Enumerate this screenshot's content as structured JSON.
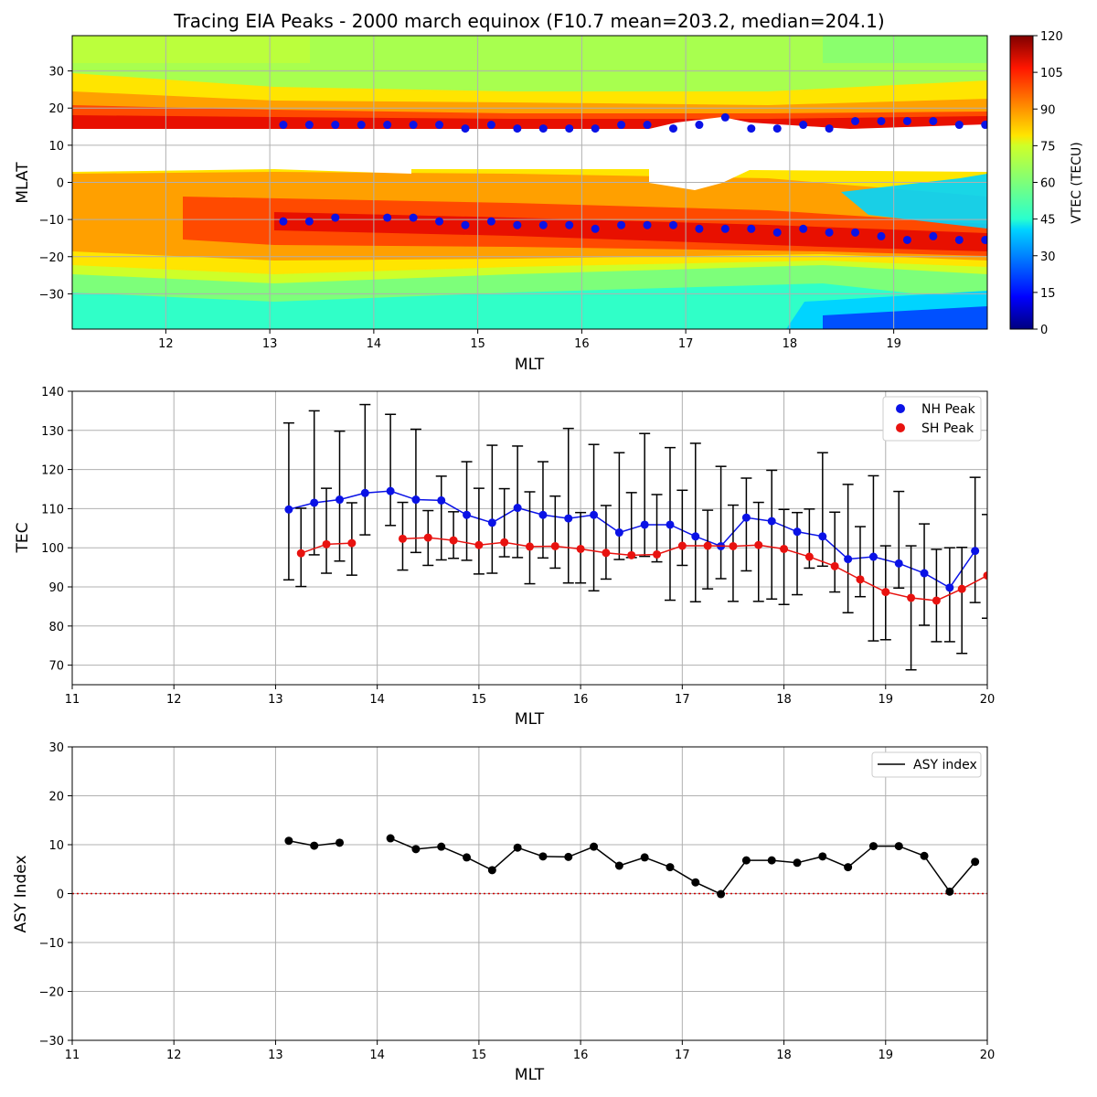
{
  "figure": {
    "title": "Tracing EIA Peaks - 2000 march equinox (F10.7 mean=203.2, median=204.1)"
  },
  "colors": {
    "nh": "#0a12e6",
    "sh": "#e8120f",
    "asy": "#000000",
    "zero_line": "#cc0000",
    "grid": "#b0b0b0"
  },
  "chart_data": [
    {
      "type": "heatmap",
      "xlabel": "MLT",
      "ylabel": "MLAT",
      "xlim": [
        11.1,
        19.9
      ],
      "ylim": [
        -39.5,
        39.5
      ],
      "xticks": [
        12,
        13,
        14,
        15,
        16,
        17,
        18,
        19
      ],
      "yticks": [
        -30,
        -20,
        -10,
        0,
        10,
        20,
        30
      ],
      "grid": true,
      "colorbar": {
        "label": "VTEC (TECU)",
        "min": 0,
        "max": 120,
        "ticks": [
          0,
          15,
          30,
          45,
          60,
          75,
          90,
          105,
          120
        ],
        "colormap": "jet"
      },
      "nh_peaks": {
        "x": [
          13.13,
          13.38,
          13.63,
          13.88,
          14.13,
          14.38,
          14.63,
          14.88,
          15.13,
          15.38,
          15.63,
          15.88,
          16.13,
          16.38,
          16.63,
          16.88,
          17.13,
          17.38,
          17.63,
          17.88,
          18.13,
          18.38,
          18.63,
          18.88,
          19.13,
          19.38,
          19.63,
          19.88
        ],
        "y": [
          15.5,
          15.5,
          15.5,
          15.5,
          15.5,
          15.5,
          15.5,
          14.5,
          15.5,
          14.5,
          14.5,
          14.5,
          14.5,
          15.5,
          15.5,
          14.5,
          15.5,
          17.5,
          14.5,
          14.5,
          15.5,
          14.5,
          16.5,
          16.5,
          16.5,
          16.5,
          15.5,
          15.5
        ]
      },
      "sh_peaks": {
        "x": [
          13.13,
          13.38,
          13.63,
          14.13,
          14.38,
          14.63,
          14.88,
          15.13,
          15.38,
          15.63,
          15.88,
          16.13,
          16.38,
          16.63,
          16.88,
          17.13,
          17.38,
          17.63,
          17.88,
          18.13,
          18.38,
          18.63,
          18.88,
          19.13,
          19.38,
          19.63,
          19.88
        ],
        "y": [
          -10.5,
          -10.5,
          -9.5,
          -9.5,
          -9.5,
          -10.5,
          -11.5,
          -10.5,
          -11.5,
          -11.5,
          -11.5,
          -12.5,
          -11.5,
          -11.5,
          -11.5,
          -12.5,
          -12.5,
          -12.5,
          -13.5,
          -12.5,
          -13.5,
          -13.5,
          -14.5,
          -15.5,
          -14.5,
          -15.5,
          -15.5
        ]
      }
    },
    {
      "type": "line",
      "xlabel": "MLT",
      "ylabel": "TEC",
      "xlim": [
        11,
        20
      ],
      "ylim": [
        65,
        140
      ],
      "xticks": [
        11,
        12,
        13,
        14,
        15,
        16,
        17,
        18,
        19,
        20
      ],
      "yticks": [
        70,
        80,
        90,
        100,
        110,
        120,
        130,
        140
      ],
      "grid": true,
      "legend": "top-right",
      "series": [
        {
          "name": "NH Peak",
          "segments": [
            {
              "x": [
                13.13,
                13.38,
                13.63,
                13.88,
                14.13,
                14.38,
                14.63,
                14.88,
                15.13,
                15.38,
                15.63,
                15.88,
                16.13,
                16.38,
                16.63,
                16.88,
                17.13,
                17.38,
                17.63,
                17.88,
                18.13,
                18.38,
                18.63,
                18.88,
                19.13,
                19.38,
                19.63,
                19.88
              ],
              "y": [
                109.8,
                111.5,
                112.3,
                114.0,
                114.5,
                112.3,
                112.1,
                108.4,
                106.4,
                110.2,
                108.4,
                107.5,
                108.4,
                103.9,
                105.9,
                105.9,
                102.9,
                100.4,
                107.7,
                106.8,
                104.1,
                102.9,
                97.1,
                97.7,
                96.0,
                93.5,
                89.8,
                99.2
              ],
              "err_low": [
                91.8,
                98.2,
                96.6,
                103.3,
                105.7,
                98.8,
                96.9,
                96.8,
                93.5,
                97.5,
                97.4,
                91.0,
                89.0,
                97.0,
                97.8,
                86.6,
                86.2,
                92.1,
                94.1,
                86.9,
                88.0,
                95.3,
                83.4,
                76.2,
                89.7,
                80.2,
                76.0,
                86.0
              ],
              "err_high": [
                131.9,
                135.0,
                129.8,
                136.6,
                134.1,
                130.3,
                118.3,
                122.0,
                126.2,
                126.0,
                122.0,
                130.5,
                126.4,
                124.3,
                129.2,
                125.6,
                126.7,
                120.8,
                117.8,
                119.8,
                109.0,
                124.3,
                116.2,
                118.4,
                114.4,
                106.1,
                100.0,
                118.0
              ]
            }
          ]
        },
        {
          "name": "SH Peak",
          "segments": [
            {
              "x": [
                13.25,
                13.5,
                13.75
              ],
              "y": [
                98.6,
                100.9,
                101.2
              ],
              "err_low": [
                90.1,
                93.5,
                93.0
              ],
              "err_high": [
                110.1,
                115.2,
                111.5
              ]
            },
            {
              "x": [
                14.25,
                14.5,
                14.75,
                15.0,
                15.25,
                15.5,
                15.75,
                16.0,
                16.25,
                16.5,
                16.75,
                17.0,
                17.25,
                17.5,
                17.75,
                18.0,
                18.25,
                18.5,
                18.75,
                19.0,
                19.25,
                19.5,
                19.75,
                20.0
              ],
              "y": [
                102.3,
                102.6,
                101.9,
                100.7,
                101.4,
                100.3,
                100.4,
                99.7,
                98.7,
                98.1,
                98.3,
                100.5,
                100.5,
                100.4,
                100.7,
                99.7,
                97.7,
                95.3,
                91.9,
                88.7,
                87.2,
                86.5,
                89.5,
                92.9
              ],
              "err_low": [
                94.3,
                95.5,
                97.3,
                93.3,
                97.7,
                90.8,
                94.8,
                91.0,
                92.0,
                97.5,
                96.4,
                95.5,
                89.5,
                86.3,
                86.3,
                85.5,
                94.8,
                88.7,
                87.5,
                76.5,
                68.8,
                76.0,
                73.0,
                82.0
              ],
              "err_high": [
                111.6,
                109.5,
                109.2,
                115.2,
                115.1,
                114.3,
                113.2,
                109.0,
                110.8,
                114.1,
                113.6,
                114.7,
                109.6,
                110.9,
                111.6,
                109.8,
                109.9,
                109.1,
                105.4,
                100.5,
                100.5,
                99.6,
                100.1,
                108.5
              ]
            }
          ]
        }
      ]
    },
    {
      "type": "line",
      "xlabel": "MLT",
      "ylabel": "ASY Index",
      "xlim": [
        11,
        20
      ],
      "ylim": [
        -30,
        30
      ],
      "xticks": [
        11,
        12,
        13,
        14,
        15,
        16,
        17,
        18,
        19,
        20
      ],
      "yticks": [
        -30,
        -20,
        -10,
        0,
        10,
        20,
        30
      ],
      "grid": true,
      "legend": "top-right",
      "reference_line": {
        "y": 0,
        "style": "dotted"
      },
      "series": [
        {
          "name": "ASY index",
          "segments": [
            {
              "x": [
                13.13,
                13.38,
                13.63
              ],
              "y": [
                10.8,
                9.8,
                10.4
              ]
            },
            {
              "x": [
                14.13,
                14.38,
                14.63,
                14.88,
                15.13,
                15.38,
                15.63,
                15.88,
                16.13,
                16.38,
                16.63,
                16.88,
                17.13,
                17.38,
                17.63,
                17.88,
                18.13,
                18.38,
                18.63,
                18.88,
                19.13,
                19.38,
                19.63,
                19.88
              ],
              "y": [
                11.3,
                9.1,
                9.6,
                7.4,
                4.8,
                9.4,
                7.6,
                7.5,
                9.6,
                5.7,
                7.4,
                5.4,
                2.3,
                -0.1,
                6.8,
                6.8,
                6.3,
                7.6,
                5.4,
                9.7,
                9.7,
                7.7,
                0.4,
                6.5
              ]
            }
          ]
        }
      ]
    }
  ]
}
